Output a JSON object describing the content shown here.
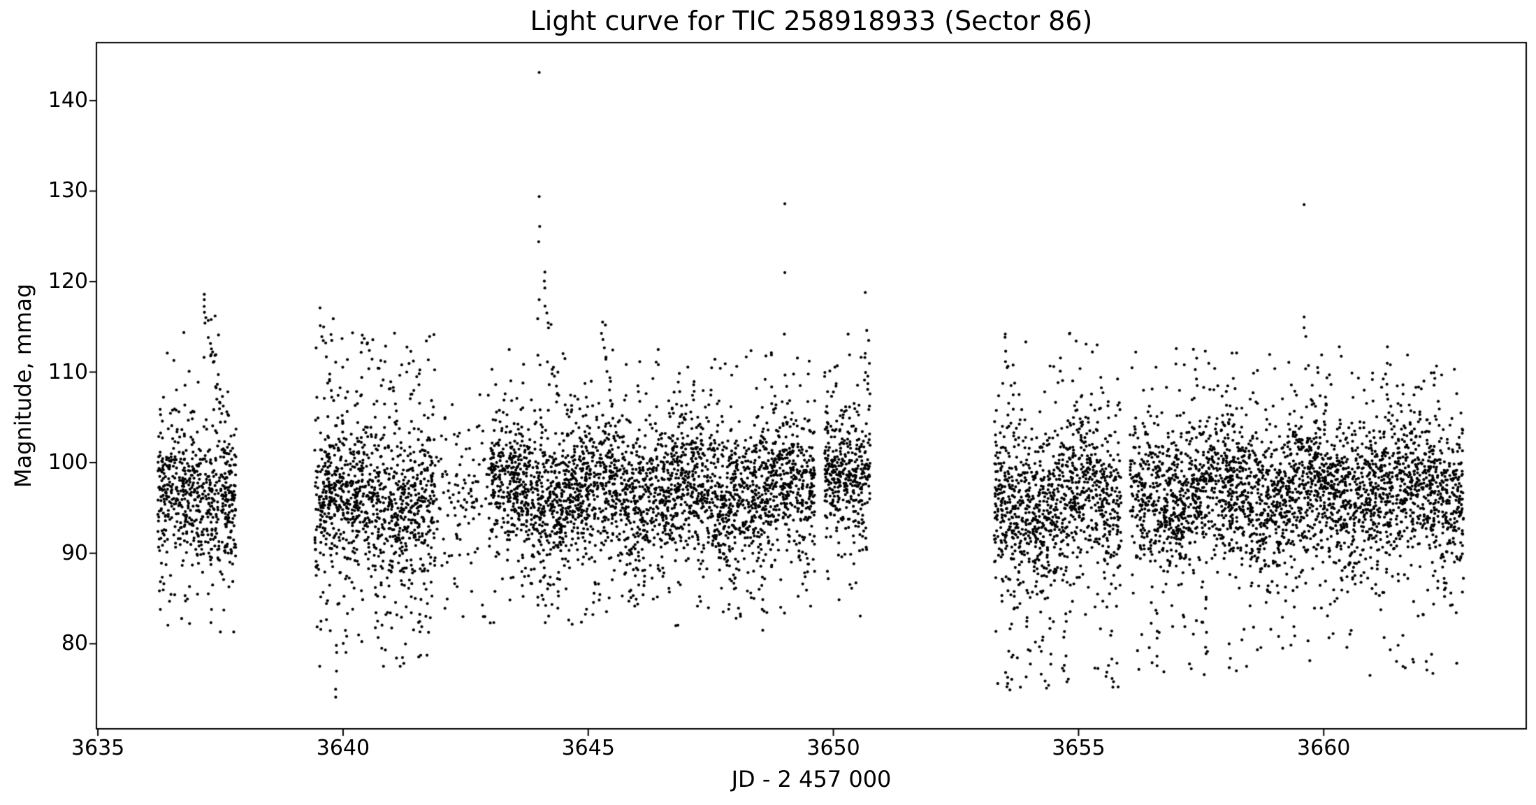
{
  "chart_data": {
    "type": "scatter",
    "title": "Light curve for TIC 258918933 (Sector 86)",
    "xlabel": "JD - 2 457 000",
    "ylabel": "Magnitude, mmag",
    "xlim": [
      3634.97,
      3664.13
    ],
    "ylim": [
      70.6,
      146.4
    ],
    "xticks": [
      3635,
      3640,
      3645,
      3650,
      3655,
      3660
    ],
    "yticks": [
      80,
      90,
      100,
      110,
      120,
      130,
      140
    ],
    "grid": false,
    "legend": null,
    "marker": {
      "color": "#000000",
      "radius_px": 2.1
    },
    "axis_color": "#000000",
    "background": "#ffffff",
    "seed": 86,
    "segments": [
      {
        "t0": 3636.22,
        "t1": 3637.82,
        "n": 640,
        "mean": 96.5,
        "sigma": 4.0,
        "wave_amp": 1.2,
        "wave_period": 1.9,
        "wave_phase": 0.2,
        "ymin": 81.3,
        "ymax": 116.0
      },
      {
        "t0": 3639.42,
        "t1": 3641.88,
        "n": 1060,
        "mean": 95.6,
        "sigma": 5.0,
        "wave_amp": 1.4,
        "wave_period": 2.0,
        "wave_phase": 1.1,
        "ymin": 77.5,
        "ymax": 115.0
      },
      {
        "t0": 3641.9,
        "t1": 3643.0,
        "n": 115,
        "mean": 95.0,
        "sigma": 5.8,
        "wave_amp": 0.5,
        "wave_period": 2.0,
        "wave_phase": 0.0,
        "ymin": 83.0,
        "ymax": 107.5
      },
      {
        "t0": 3643.0,
        "t1": 3649.62,
        "n": 2850,
        "mean": 96.9,
        "sigma": 4.2,
        "wave_amp": 1.4,
        "wave_period": 1.9,
        "wave_phase": 2.6,
        "ymin": 82.0,
        "ymax": 112.5
      },
      {
        "t0": 3649.82,
        "t1": 3650.75,
        "n": 400,
        "mean": 98.8,
        "sigma": 3.6,
        "wave_amp": 0.8,
        "wave_period": 1.9,
        "wave_phase": 0.4,
        "ymin": 82.5,
        "ymax": 115.0
      },
      {
        "t0": 3653.28,
        "t1": 3655.87,
        "n": 1110,
        "mean": 95.6,
        "sigma": 5.0,
        "wave_amp": 1.4,
        "wave_period": 2.1,
        "wave_phase": 0.9,
        "ymin": 75.0,
        "ymax": 114.3
      },
      {
        "t0": 3656.05,
        "t1": 3662.85,
        "n": 2920,
        "mean": 96.8,
        "sigma": 4.3,
        "wave_amp": 1.3,
        "wave_period": 2.0,
        "wave_phase": 2.1,
        "ymin": 76.5,
        "ymax": 112.8
      }
    ],
    "flares": [
      {
        "t0": 3637.15,
        "dur": 0.42,
        "peak": 117.5,
        "slope": 28,
        "n": 22
      },
      {
        "t0": 3639.5,
        "dur": 0.45,
        "peak": 116.5,
        "slope": 35,
        "n": 14
      },
      {
        "t0": 3640.3,
        "dur": 0.8,
        "peak": 114.5,
        "slope": 12,
        "n": 18
      },
      {
        "t0": 3644.0,
        "dur": 0.4,
        "peak": 124.0,
        "slope": 45,
        "n": 16
      },
      {
        "t0": 3645.25,
        "dur": 0.25,
        "peak": 115.5,
        "slope": 40,
        "n": 8
      },
      {
        "t0": 3650.55,
        "dur": 0.2,
        "peak": 115.0,
        "slope": 45,
        "n": 8
      },
      {
        "t0": 3653.5,
        "dur": 0.35,
        "peak": 113.5,
        "slope": 35,
        "n": 10
      },
      {
        "t0": 3657.3,
        "dur": 0.25,
        "peak": 113.5,
        "slope": 45,
        "n": 6
      },
      {
        "t0": 3659.6,
        "dur": 0.3,
        "peak": 115.5,
        "slope": 50,
        "n": 8
      },
      {
        "t0": 3661.2,
        "dur": 0.25,
        "peak": 112.8,
        "slope": 40,
        "n": 6
      }
    ],
    "drops": [
      {
        "t": 3637.32,
        "ybottom": 81.4,
        "ytop": 87.5,
        "n": 3
      },
      {
        "t": 3639.85,
        "ybottom": 74.1,
        "ytop": 82.0,
        "n": 3
      },
      {
        "t": 3640.05,
        "ybottom": 77.6,
        "ytop": 84.0,
        "n": 4
      },
      {
        "t": 3641.58,
        "ybottom": 78.2,
        "ytop": 85.0,
        "n": 4
      },
      {
        "t": 3644.38,
        "ybottom": 82.6,
        "ytop": 88.0,
        "n": 3
      },
      {
        "t": 3648.55,
        "ybottom": 82.0,
        "ytop": 89.5,
        "n": 6
      },
      {
        "t": 3649.48,
        "ybottom": 86.0,
        "ytop": 90.5,
        "n": 4
      },
      {
        "t": 3653.58,
        "ybottom": 74.9,
        "ytop": 83.0,
        "n": 3
      },
      {
        "t": 3654.72,
        "ybottom": 77.0,
        "ytop": 84.0,
        "n": 5
      },
      {
        "t": 3655.68,
        "ybottom": 75.2,
        "ytop": 83.0,
        "n": 3
      },
      {
        "t": 3656.6,
        "ybottom": 76.9,
        "ytop": 85.0,
        "n": 6
      },
      {
        "t": 3657.6,
        "ybottom": 78.9,
        "ytop": 85.5,
        "n": 4
      },
      {
        "t": 3662.45,
        "ybottom": 85.3,
        "ytop": 89.5,
        "n": 4
      }
    ],
    "outliers": [
      [
        3637.17,
        118.6
      ],
      [
        3637.17,
        118.0
      ],
      [
        3637.39,
        116.2
      ],
      [
        3637.25,
        115.7
      ],
      [
        3637.46,
        114.1
      ],
      [
        3639.53,
        117.1
      ],
      [
        3639.8,
        115.9
      ],
      [
        3639.77,
        113.5
      ],
      [
        3641.05,
        114.3
      ],
      [
        3639.85,
        74.1
      ],
      [
        3644.0,
        143.1
      ],
      [
        3644.0,
        129.4
      ],
      [
        3644.01,
        126.1
      ],
      [
        3643.99,
        124.4
      ],
      [
        3644.0,
        118.0
      ],
      [
        3643.97,
        115.9
      ],
      [
        3645.35,
        115.2
      ],
      [
        3645.3,
        113.6
      ],
      [
        3649.01,
        128.6
      ],
      [
        3649.01,
        121.0
      ],
      [
        3649.0,
        114.2
      ],
      [
        3650.65,
        118.8
      ],
      [
        3650.68,
        114.6
      ],
      [
        3650.3,
        114.2
      ],
      [
        3650.72,
        113.5
      ],
      [
        3653.6,
        74.9
      ],
      [
        3655.7,
        75.2
      ],
      [
        3654.7,
        77.0
      ],
      [
        3656.74,
        76.9
      ],
      [
        3656.5,
        77.9
      ],
      [
        3657.6,
        78.9
      ],
      [
        3659.6,
        128.5
      ],
      [
        3659.6,
        116.1
      ],
      [
        3659.6,
        114.9
      ],
      [
        3661.3,
        112.8
      ]
    ]
  }
}
